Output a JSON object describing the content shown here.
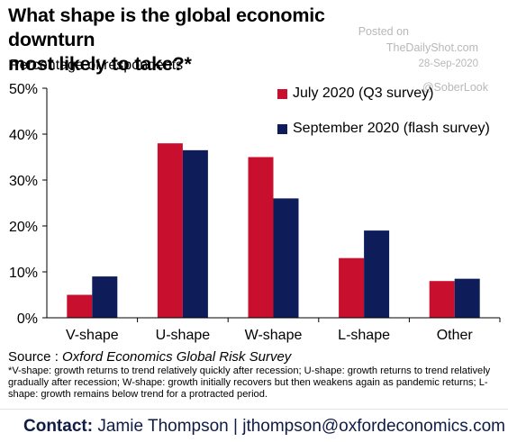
{
  "header": {
    "title_line1": "What shape is the global economic downturn",
    "title_line2": "most likely to take?*",
    "subtitle": "Percentage of respondents"
  },
  "watermark": {
    "line1": "Posted on",
    "line2": "TheDailyShot.com",
    "line3": "28-Sep-2020",
    "line4": "@SoberLook"
  },
  "colors": {
    "july": "#c8102e",
    "september": "#0f1c5a",
    "axis": "#000000"
  },
  "chart_data": {
    "type": "bar",
    "categories": [
      "V-shape",
      "U-shape",
      "W-shape",
      "L-shape",
      "Other"
    ],
    "series": [
      {
        "name": "July 2020 (Q3 survey)",
        "values": [
          5,
          38,
          35,
          13,
          8
        ]
      },
      {
        "name": "September 2020 (flash survey)",
        "values": [
          9,
          36.5,
          26,
          19,
          8.5
        ]
      }
    ],
    "yticks": [
      "0%",
      "10%",
      "20%",
      "30%",
      "40%",
      "50%"
    ],
    "ylim": [
      0,
      50
    ],
    "legend": "top-right",
    "grid": false
  },
  "source": {
    "prefix": "Source : ",
    "name": "Oxford Economics Global Risk Survey"
  },
  "footnote": "*V-shape: growth returns to trend relatively quickly after recession; U-shape: growth returns to trend relatively gradually after recession; W-shape: growth initially recovers but then weakens again as pandemic returns; L-shape: growth remains below trend for a protracted period.",
  "contact": {
    "label": "Contact:",
    "text": " Jamie Thompson | jthompson@oxfordeconomics.com"
  }
}
